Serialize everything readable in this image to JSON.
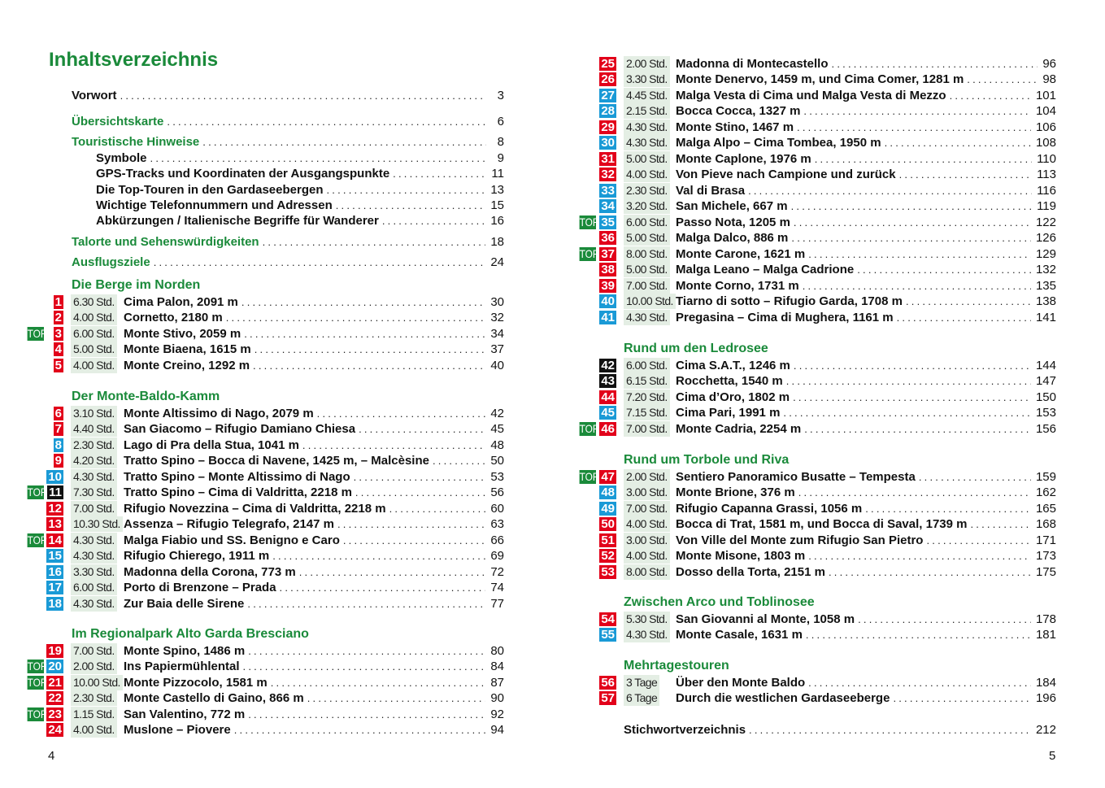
{
  "title": "Inhaltsverzeichnis",
  "colors": {
    "red": "#e2001a",
    "blue": "#1a9ad6",
    "black": "#111111",
    "green": "#1a8a3a",
    "time_bg": "#e4eee4"
  },
  "top_label": "TOP",
  "front": [
    {
      "label": "Vorwort",
      "page": "3",
      "style": "main"
    },
    {
      "label": "Übersichtskarte",
      "page": "6",
      "style": "green"
    },
    {
      "label": "Touristische Hinweise",
      "page": "8",
      "style": "green"
    },
    {
      "label": "Symbole",
      "page": "9",
      "style": "sub"
    },
    {
      "label": "GPS-Tracks und Koordinaten der Ausgangspunkte",
      "page": "11",
      "style": "sub"
    },
    {
      "label": "Die Top-Touren in den Gardaseebergen",
      "page": "13",
      "style": "sub"
    },
    {
      "label": "Wichtige Telefonnummern und Adressen",
      "page": "15",
      "style": "sub"
    },
    {
      "label": "Abkürzungen / Italienische Begriffe für Wanderer",
      "page": "16",
      "style": "sub"
    },
    {
      "label": "Talorte und Sehenswürdigkeiten",
      "page": "18",
      "style": "green"
    },
    {
      "label": "Ausflugsziele",
      "page": "24",
      "style": "green"
    }
  ],
  "sections": [
    {
      "heading": "Die Berge im Norden",
      "entries": [
        {
          "n": "1",
          "c": "r",
          "top": false,
          "time": "6.30 Std.",
          "title": "Cima Palon, 2091 m",
          "page": "30"
        },
        {
          "n": "2",
          "c": "r",
          "top": false,
          "time": "4.00 Std.",
          "title": "Cornetto, 2180 m",
          "page": "32"
        },
        {
          "n": "3",
          "c": "r",
          "top": true,
          "time": "6.00 Std.",
          "title": "Monte Stivo, 2059 m",
          "page": "34"
        },
        {
          "n": "4",
          "c": "r",
          "top": false,
          "time": "5.00 Std.",
          "title": "Monte Biaena, 1615 m",
          "page": "37"
        },
        {
          "n": "5",
          "c": "r",
          "top": false,
          "time": "4.00 Std.",
          "title": "Monte Creino, 1292 m",
          "page": "40"
        }
      ]
    },
    {
      "heading": "Der Monte-Baldo-Kamm",
      "entries": [
        {
          "n": "6",
          "c": "r",
          "top": false,
          "time": "3.10 Std.",
          "title": "Monte Altissimo di Nago, 2079 m",
          "page": "42"
        },
        {
          "n": "7",
          "c": "r",
          "top": false,
          "time": "4.40 Std.",
          "title": "San Giacomo – Rifugio Damiano Chiesa",
          "page": "45"
        },
        {
          "n": "8",
          "c": "b",
          "top": false,
          "time": "2.30 Std.",
          "title": "Lago di Pra della Stua, 1041 m",
          "page": "48"
        },
        {
          "n": "9",
          "c": "r",
          "top": false,
          "time": "4.20 Std.",
          "title": "Tratto Spino – Bocca di Navene, 1425 m, – Malcèsine",
          "page": "50"
        },
        {
          "n": "10",
          "c": "b",
          "top": false,
          "time": "4.30 Std.",
          "title": "Tratto Spino – Monte Altissimo di Nago",
          "page": "53"
        },
        {
          "n": "11",
          "c": "k",
          "top": true,
          "time": "7.30 Std.",
          "title": "Tratto Spino – Cima di Valdritta, 2218 m",
          "page": "56"
        },
        {
          "n": "12",
          "c": "r",
          "top": false,
          "time": "7.00 Std.",
          "title": "Rifugio Novezzina – Cima di Valdritta, 2218 m",
          "page": "60"
        },
        {
          "n": "13",
          "c": "r",
          "top": false,
          "time": "10.30 Std.",
          "title": "Assenza – Rifugio Telegrafo, 2147 m",
          "page": "63"
        },
        {
          "n": "14",
          "c": "r",
          "top": true,
          "time": "4.30 Std.",
          "title": "Malga Fiabio und SS. Benigno e Caro",
          "page": "66"
        },
        {
          "n": "15",
          "c": "b",
          "top": false,
          "time": "4.30 Std.",
          "title": "Rifugio Chierego, 1911 m",
          "page": "69"
        },
        {
          "n": "16",
          "c": "b",
          "top": false,
          "time": "3.30 Std.",
          "title": "Madonna della Corona, 773 m",
          "page": "72"
        },
        {
          "n": "17",
          "c": "b",
          "top": false,
          "time": "6.00 Std.",
          "title": "Porto di Brenzone – Prada",
          "page": "74"
        },
        {
          "n": "18",
          "c": "b",
          "top": false,
          "time": "4.30 Std.",
          "title": "Zur Baia delle Sirene",
          "page": "77"
        }
      ]
    },
    {
      "heading": "Im Regionalpark Alto Garda Bresciano",
      "entries": [
        {
          "n": "19",
          "c": "r",
          "top": false,
          "time": "7.00 Std.",
          "title": "Monte Spino, 1486 m",
          "page": "80"
        },
        {
          "n": "20",
          "c": "b",
          "top": true,
          "time": "2.00 Std.",
          "title": "Ins Papiermühlental",
          "page": "84"
        },
        {
          "n": "21",
          "c": "r",
          "top": true,
          "time": "10.00 Std.",
          "title": "Monte Pizzocolo, 1581 m",
          "page": "87"
        },
        {
          "n": "22",
          "c": "r",
          "top": false,
          "time": "2.30 Std.",
          "title": "Monte Castello di Gaino, 866 m",
          "page": "90"
        },
        {
          "n": "23",
          "c": "r",
          "top": true,
          "time": "1.15 Std.",
          "title": "San Valentino, 772 m",
          "page": "92"
        },
        {
          "n": "24",
          "c": "r",
          "top": false,
          "time": "4.00 Std.",
          "title": "Muslone – Piovere",
          "page": "94"
        }
      ]
    },
    {
      "heading": "",
      "entries": [
        {
          "n": "25",
          "c": "r",
          "top": false,
          "time": "2.00 Std.",
          "title": "Madonna di Montecastello",
          "page": "96"
        },
        {
          "n": "26",
          "c": "r",
          "top": false,
          "time": "3.30 Std.",
          "title": "Monte Denervo, 1459 m, und Cima Comer, 1281 m",
          "page": "98"
        },
        {
          "n": "27",
          "c": "b",
          "top": false,
          "time": "4.45 Std.",
          "title": "Malga Vesta di Cima und Malga Vesta di Mezzo",
          "page": "101"
        },
        {
          "n": "28",
          "c": "b",
          "top": false,
          "time": "2.15 Std.",
          "title": "Bocca Cocca, 1327 m",
          "page": "104"
        },
        {
          "n": "29",
          "c": "r",
          "top": false,
          "time": "4.30 Std.",
          "title": "Monte Stino, 1467 m",
          "page": "106"
        },
        {
          "n": "30",
          "c": "b",
          "top": false,
          "time": "4.30 Std.",
          "title": "Malga Alpo – Cima Tombea, 1950 m",
          "page": "108"
        },
        {
          "n": "31",
          "c": "r",
          "top": false,
          "time": "5.00 Std.",
          "title": "Monte Caplone, 1976 m",
          "page": "110"
        },
        {
          "n": "32",
          "c": "r",
          "top": false,
          "time": "4.00 Std.",
          "title": "Von Pieve nach Campione und zurück",
          "page": "113"
        },
        {
          "n": "33",
          "c": "b",
          "top": false,
          "time": "2.30 Std.",
          "title": "Val di Brasa",
          "page": "116"
        },
        {
          "n": "34",
          "c": "b",
          "top": false,
          "time": "3.20 Std.",
          "title": "San Michele, 667 m",
          "page": "119"
        },
        {
          "n": "35",
          "c": "b",
          "top": true,
          "time": "6.00 Std.",
          "title": "Passo Nota, 1205 m",
          "page": "122"
        },
        {
          "n": "36",
          "c": "r",
          "top": false,
          "time": "5.00 Std.",
          "title": "Malga Dalco, 886 m",
          "page": "126"
        },
        {
          "n": "37",
          "c": "r",
          "top": true,
          "time": "8.00 Std.",
          "title": "Monte Carone, 1621 m",
          "page": "129"
        },
        {
          "n": "38",
          "c": "r",
          "top": false,
          "time": "5.00 Std.",
          "title": "Malga Leano – Malga Cadrione",
          "page": "132"
        },
        {
          "n": "39",
          "c": "r",
          "top": false,
          "time": "7.00 Std.",
          "title": "Monte Corno, 1731 m",
          "page": "135"
        },
        {
          "n": "40",
          "c": "b",
          "top": false,
          "time": "10.00 Std.",
          "title": "Tiarno di sotto – Rifugio Garda, 1708 m",
          "page": "138"
        },
        {
          "n": "41",
          "c": "b",
          "top": false,
          "time": "4.30 Std.",
          "title": "Pregasina – Cima di Mughera, 1161 m",
          "page": "141"
        }
      ]
    },
    {
      "heading": "Rund um den Ledrosee",
      "entries": [
        {
          "n": "42",
          "c": "k",
          "top": false,
          "time": "6.00 Std.",
          "title": "Cima S.A.T., 1246 m",
          "page": "144"
        },
        {
          "n": "43",
          "c": "k",
          "top": false,
          "time": "6.15 Std.",
          "title": "Rocchetta, 1540 m",
          "page": "147"
        },
        {
          "n": "44",
          "c": "r",
          "top": false,
          "time": "7.20 Std.",
          "title": "Cima d’Oro, 1802 m",
          "page": "150"
        },
        {
          "n": "45",
          "c": "b",
          "top": false,
          "time": "7.15 Std.",
          "title": "Cima Pari, 1991 m",
          "page": "153"
        },
        {
          "n": "46",
          "c": "r",
          "top": true,
          "time": "7.00 Std.",
          "title": "Monte Cadria, 2254 m",
          "page": "156"
        }
      ]
    },
    {
      "heading": "Rund um Torbole und Riva",
      "entries": [
        {
          "n": "47",
          "c": "r",
          "top": true,
          "time": "2.00 Std.",
          "title": "Sentiero Panoramico Busatte – Tempesta",
          "page": "159"
        },
        {
          "n": "48",
          "c": "b",
          "top": false,
          "time": "3.00 Std.",
          "title": "Monte Brione, 376 m",
          "page": "162"
        },
        {
          "n": "49",
          "c": "b",
          "top": false,
          "time": "7.00 Std.",
          "title": "Rifugio Capanna Grassi, 1056 m",
          "page": "165"
        },
        {
          "n": "50",
          "c": "r",
          "top": false,
          "time": "4.00 Std.",
          "title": "Bocca di Trat, 1581 m, und Bocca di Saval, 1739 m",
          "page": "168"
        },
        {
          "n": "51",
          "c": "r",
          "top": false,
          "time": "3.00 Std.",
          "title": "Von Ville del Monte zum Rifugio San Pietro",
          "page": "171"
        },
        {
          "n": "52",
          "c": "r",
          "top": false,
          "time": "4.00 Std.",
          "title": "Monte Misone, 1803 m",
          "page": "173"
        },
        {
          "n": "53",
          "c": "r",
          "top": false,
          "time": "8.00 Std.",
          "title": "Dosso della Torta, 2151 m",
          "page": "175"
        }
      ]
    },
    {
      "heading": "Zwischen Arco und Toblinosee",
      "entries": [
        {
          "n": "54",
          "c": "r",
          "top": false,
          "time": "5.30 Std.",
          "title": "San Giovanni al Monte, 1058 m",
          "page": "178"
        },
        {
          "n": "55",
          "c": "b",
          "top": false,
          "time": "4.30 Std.",
          "title": "Monte Casale, 1631 m",
          "page": "181"
        }
      ]
    },
    {
      "heading": "Mehrtagestouren",
      "entries": [
        {
          "n": "56",
          "c": "r",
          "top": false,
          "time": "3 Tage",
          "title": "Über den Monte Baldo",
          "page": "184"
        },
        {
          "n": "57",
          "c": "r",
          "top": false,
          "time": "6 Tage",
          "title": "Durch die westlichen Gardaseeberge",
          "page": "196"
        }
      ]
    }
  ],
  "back": {
    "label": "Stichwortverzeichnis",
    "page": "212"
  },
  "page_numbers": {
    "left": "4",
    "right": "5"
  }
}
